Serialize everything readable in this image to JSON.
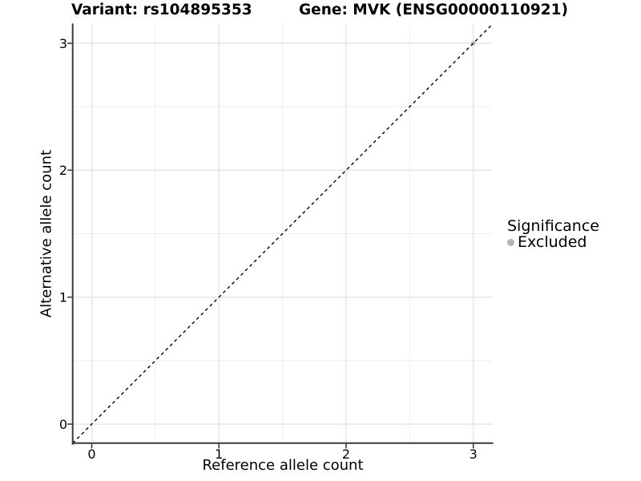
{
  "titles": {
    "variant": "Variant: rs104895353",
    "gene": "Gene: MVK (ENSG00000110921)"
  },
  "legend": {
    "title": "Significance",
    "items": [
      {
        "label": "Excluded",
        "color": "#b5b5b5"
      }
    ]
  },
  "chart_data": {
    "type": "scatter",
    "xlabel": "Reference allele count",
    "ylabel": "Alternative allele count",
    "xlim": [
      -0.15,
      3.15
    ],
    "ylim": [
      -0.15,
      3.15
    ],
    "x_ticks": [
      0,
      1,
      2,
      3
    ],
    "y_ticks": [
      0,
      1,
      2,
      3
    ],
    "x_minor_ticks": [
      0.5,
      1.5,
      2.5
    ],
    "y_minor_ticks": [
      0.5,
      1.5,
      2.5
    ],
    "grid": true,
    "legend_position": "right",
    "series": [
      {
        "name": "Excluded",
        "color": "#bdbdbd",
        "points": [
          {
            "x": 3,
            "y": 3
          }
        ]
      }
    ],
    "reference_line": {
      "type": "identity",
      "from": [
        -0.15,
        -0.15
      ],
      "to": [
        3.15,
        3.15
      ],
      "style": "dashed",
      "color": "#000000"
    }
  },
  "colors": {
    "grid_major": "#e3e3e3",
    "grid_minor": "#eeeeee",
    "axis_line": "#3a3a3a",
    "tick_label": "#000000"
  }
}
